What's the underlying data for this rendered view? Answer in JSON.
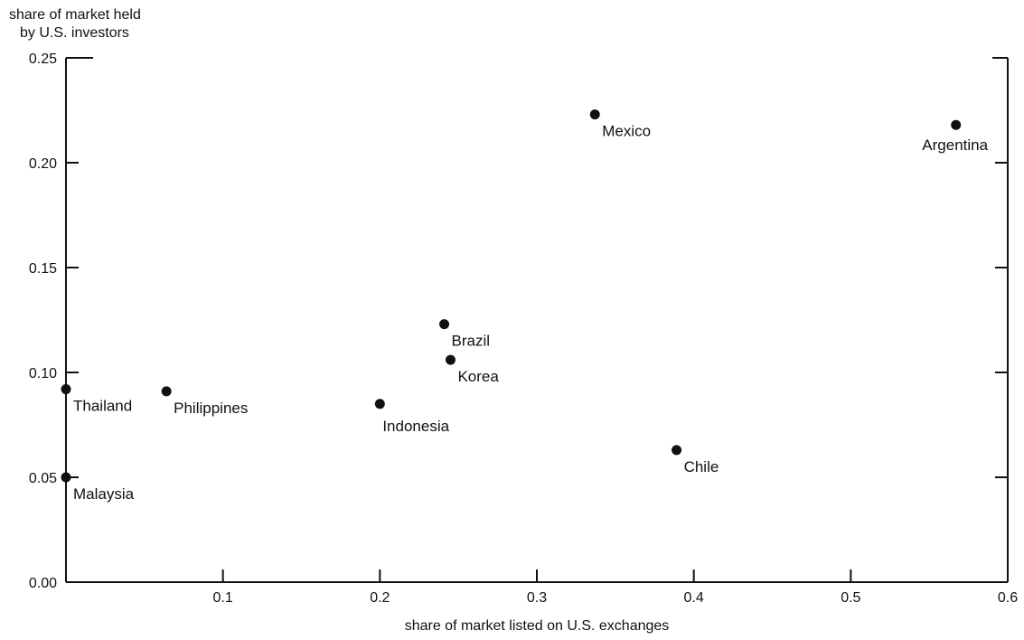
{
  "chart_data": {
    "type": "scatter",
    "xlabel": "share of market listed on U.S. exchanges",
    "ylabel_lines": [
      "share of market held",
      "by U.S. investors"
    ],
    "xlim": [
      0,
      0.6
    ],
    "ylim": [
      0,
      0.25
    ],
    "x_ticks": [
      {
        "value": 0.1,
        "label": "0.1"
      },
      {
        "value": 0.2,
        "label": "0.2"
      },
      {
        "value": 0.3,
        "label": "0.3"
      },
      {
        "value": 0.4,
        "label": "0.4"
      },
      {
        "value": 0.5,
        "label": "0.5"
      },
      {
        "value": 0.6,
        "label": "0.6"
      }
    ],
    "y_ticks": [
      {
        "value": 0.0,
        "label": "0.00"
      },
      {
        "value": 0.05,
        "label": "0.05"
      },
      {
        "value": 0.1,
        "label": "0.10"
      },
      {
        "value": 0.15,
        "label": "0.15"
      },
      {
        "value": 0.2,
        "label": "0.20"
      },
      {
        "value": 0.25,
        "label": "0.25"
      }
    ],
    "grid": false,
    "points": [
      {
        "label": "Mexico",
        "x": 0.337,
        "y": 0.223,
        "label_pos": "below-right"
      },
      {
        "label": "Argentina",
        "x": 0.567,
        "y": 0.218,
        "label_pos": "below"
      },
      {
        "label": "Brazil",
        "x": 0.241,
        "y": 0.123,
        "label_pos": "below-right"
      },
      {
        "label": "Korea",
        "x": 0.245,
        "y": 0.106,
        "label_pos": "below-right"
      },
      {
        "label": "Indonesia",
        "x": 0.2,
        "y": 0.085,
        "label_pos": "below"
      },
      {
        "label": "Chile",
        "x": 0.389,
        "y": 0.063,
        "label_pos": "below-right"
      },
      {
        "label": "Thailand",
        "x": 0.0,
        "y": 0.092,
        "label_pos": "below-right"
      },
      {
        "label": "Philippines",
        "x": 0.064,
        "y": 0.091,
        "label_pos": "below-right"
      },
      {
        "label": "Malaysia",
        "x": 0.0,
        "y": 0.05,
        "label_pos": "below-right"
      }
    ]
  }
}
